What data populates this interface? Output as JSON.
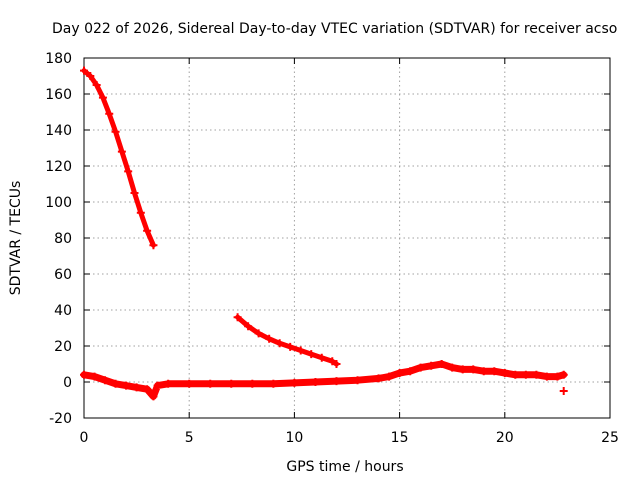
{
  "chart_data": {
    "type": "scatter",
    "title": "Day 022 of 2026, Sidereal Day-to-day VTEC variation (SDTVAR) for receiver acso",
    "xlabel": "GPS time / hours",
    "ylabel": "SDTVAR / TECUs",
    "xlim": [
      0,
      25
    ],
    "ylim": [
      -20,
      180
    ],
    "xticks": [
      0,
      5,
      10,
      15,
      20,
      25
    ],
    "yticks": [
      -20,
      0,
      20,
      40,
      60,
      80,
      100,
      120,
      140,
      160,
      180
    ],
    "grid": true,
    "marker": "plus",
    "color": "#ff0000",
    "series": [
      {
        "name": "high-decay",
        "x": [
          0.0,
          0.3,
          0.6,
          0.9,
          1.2,
          1.5,
          1.8,
          2.1,
          2.4,
          2.7,
          3.0,
          3.3
        ],
        "y": [
          173,
          170,
          165,
          158,
          149,
          139,
          128,
          117,
          105,
          94,
          84,
          76
        ]
      },
      {
        "name": "mid-decay",
        "x": [
          7.3,
          7.8,
          8.3,
          8.8,
          9.3,
          9.8,
          10.3,
          10.8,
          11.3,
          11.8,
          12.0
        ],
        "y": [
          36,
          31,
          27,
          24,
          21.5,
          19.5,
          17.5,
          15.5,
          13.5,
          11.5,
          10
        ]
      },
      {
        "name": "baseline",
        "x": [
          0.0,
          0.5,
          1.0,
          1.5,
          2.0,
          2.5,
          3.0,
          3.3,
          3.5,
          4.0,
          5.0,
          6.0,
          7.0,
          8.0,
          9.0,
          10.0,
          11.0,
          12.0,
          13.0,
          14.0,
          14.5,
          15.0,
          15.5,
          16.0,
          16.5,
          17.0,
          17.5,
          18.0,
          18.5,
          19.0,
          19.5,
          20.0,
          20.5,
          21.0,
          21.5,
          22.0,
          22.5,
          22.8
        ],
        "y": [
          4,
          3,
          1,
          -1,
          -2,
          -3,
          -4,
          -8,
          -2,
          -1,
          -1,
          -1,
          -1,
          -1,
          -1,
          -0.5,
          0,
          0.5,
          1,
          2,
          3,
          5,
          6,
          8,
          9,
          10,
          8,
          7,
          7,
          6,
          6,
          5,
          4,
          4,
          4,
          3,
          3,
          4
        ]
      },
      {
        "name": "outlier",
        "x": [
          22.8
        ],
        "y": [
          -5
        ]
      }
    ]
  }
}
